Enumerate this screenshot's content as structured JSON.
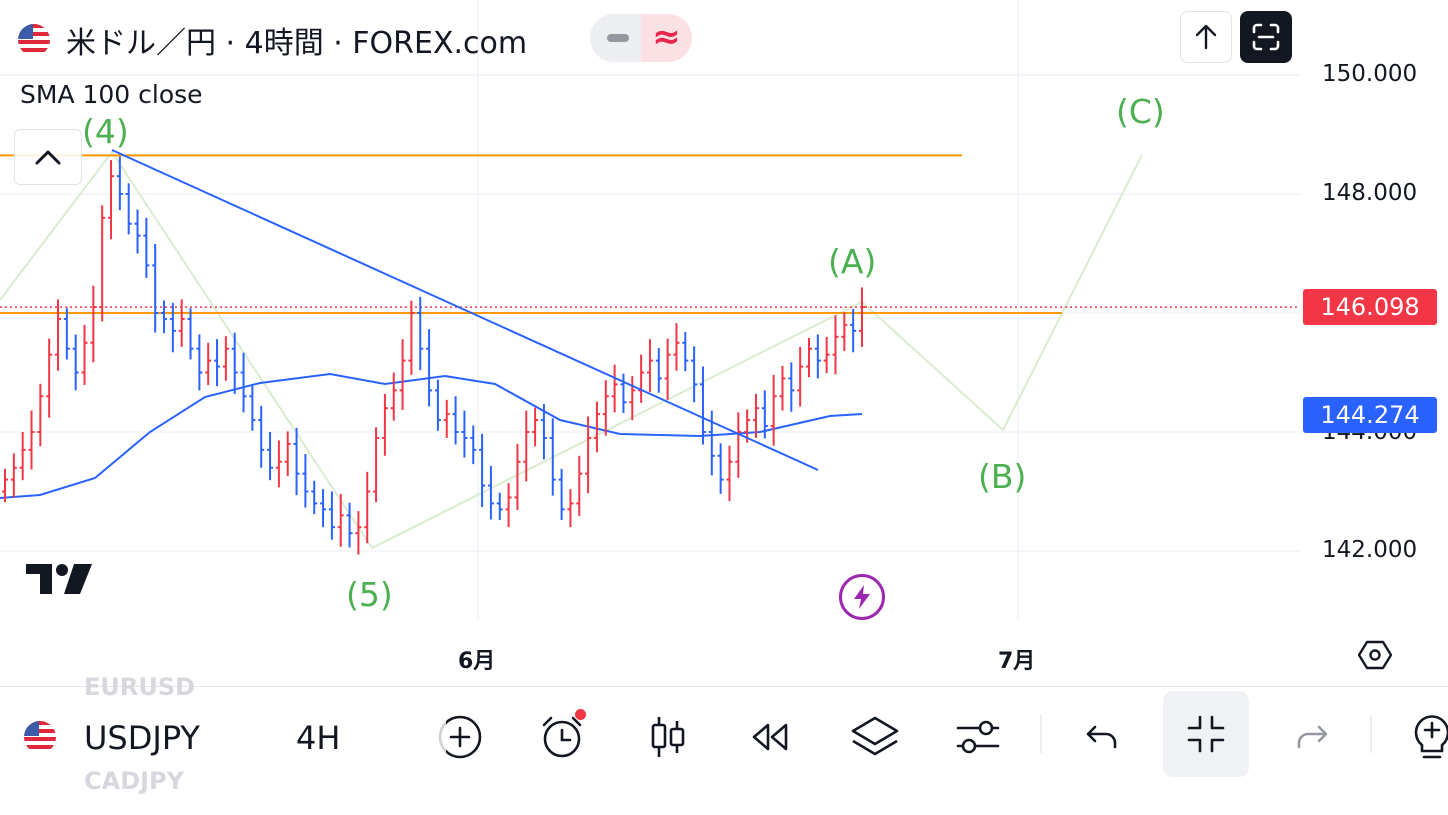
{
  "header": {
    "title": "米ドル／円 · 4時間 · FOREX.com",
    "indicator_minus_icon": "minimize-icon",
    "indicator_wave_symbol": "≈"
  },
  "indicator": {
    "label": "SMA 100 close"
  },
  "wave_labels": {
    "w4": "(4)",
    "w5": "(5)",
    "wA": "(A)",
    "wB": "(B)",
    "wC": "(C)"
  },
  "price_axis": {
    "ticks": [
      "150.000",
      "148.000",
      "144.000",
      "142.000"
    ],
    "current_price": "146.098",
    "sma_value": "144.274",
    "current_price_color": "#f23645",
    "sma_color": "#2962ff"
  },
  "time_axis": {
    "ticks": [
      "6月",
      "7月"
    ]
  },
  "bottom_toolbar": {
    "ghost_above": "EURUSD",
    "ghost_below": "CADJPY",
    "symbol": "USDJPY",
    "timeframe": "4H"
  },
  "colors": {
    "up_bar": "#f23645",
    "down_bar": "#2962ff",
    "wave_label": "#4caf50",
    "horizontal_line": "#ff9800",
    "trend_line": "#2962ff",
    "sma_line": "#2962ff",
    "wave_path": "#d9ebd0"
  },
  "chart_data": {
    "type": "ohlc",
    "symbol": "USDJPY",
    "interval": "4時間",
    "ylim": [
      141.6,
      150.6
    ],
    "horizontal_levels": [
      148.65,
      146.0
    ],
    "current_price": 146.098,
    "sma_100": 144.274,
    "wave_points": [
      {
        "label": "(4)",
        "price": 148.6
      },
      {
        "label": "(5)",
        "price": 142.1
      },
      {
        "label": "(A)",
        "price": 146.1
      },
      {
        "label": "(B)",
        "price": 144.0
      },
      {
        "label": "(C)",
        "price": 148.6
      }
    ],
    "close_series": [
      143.2,
      143.4,
      143.7,
      144.0,
      144.6,
      145.3,
      145.9,
      145.4,
      145.0,
      145.5,
      146.1,
      147.6,
      148.3,
      148.0,
      147.5,
      147.3,
      146.8,
      146.0,
      145.9,
      145.7,
      145.9,
      145.4,
      145.0,
      145.2,
      145.1,
      145.4,
      145.0,
      144.6,
      144.2,
      143.7,
      143.4,
      143.5,
      143.8,
      143.3,
      143.0,
      142.8,
      142.7,
      142.4,
      142.6,
      142.3,
      142.4,
      143.0,
      143.9,
      144.4,
      144.7,
      145.2,
      146.0,
      145.4,
      144.7,
      144.2,
      144.3,
      144.0,
      143.9,
      143.7,
      143.1,
      142.8,
      142.7,
      142.9,
      143.5,
      144.0,
      144.2,
      143.9,
      143.2,
      142.7,
      142.8,
      143.3,
      143.9,
      144.3,
      144.6,
      144.8,
      144.5,
      144.7,
      145.0,
      145.2,
      144.9,
      145.3,
      145.5,
      145.2,
      144.8,
      144.0,
      143.6,
      143.2,
      143.5,
      144.0,
      144.2,
      144.4,
      144.1,
      144.6,
      144.9,
      144.7,
      145.1,
      145.4,
      145.2,
      145.3,
      145.6,
      145.8,
      145.7,
      146.1
    ]
  }
}
